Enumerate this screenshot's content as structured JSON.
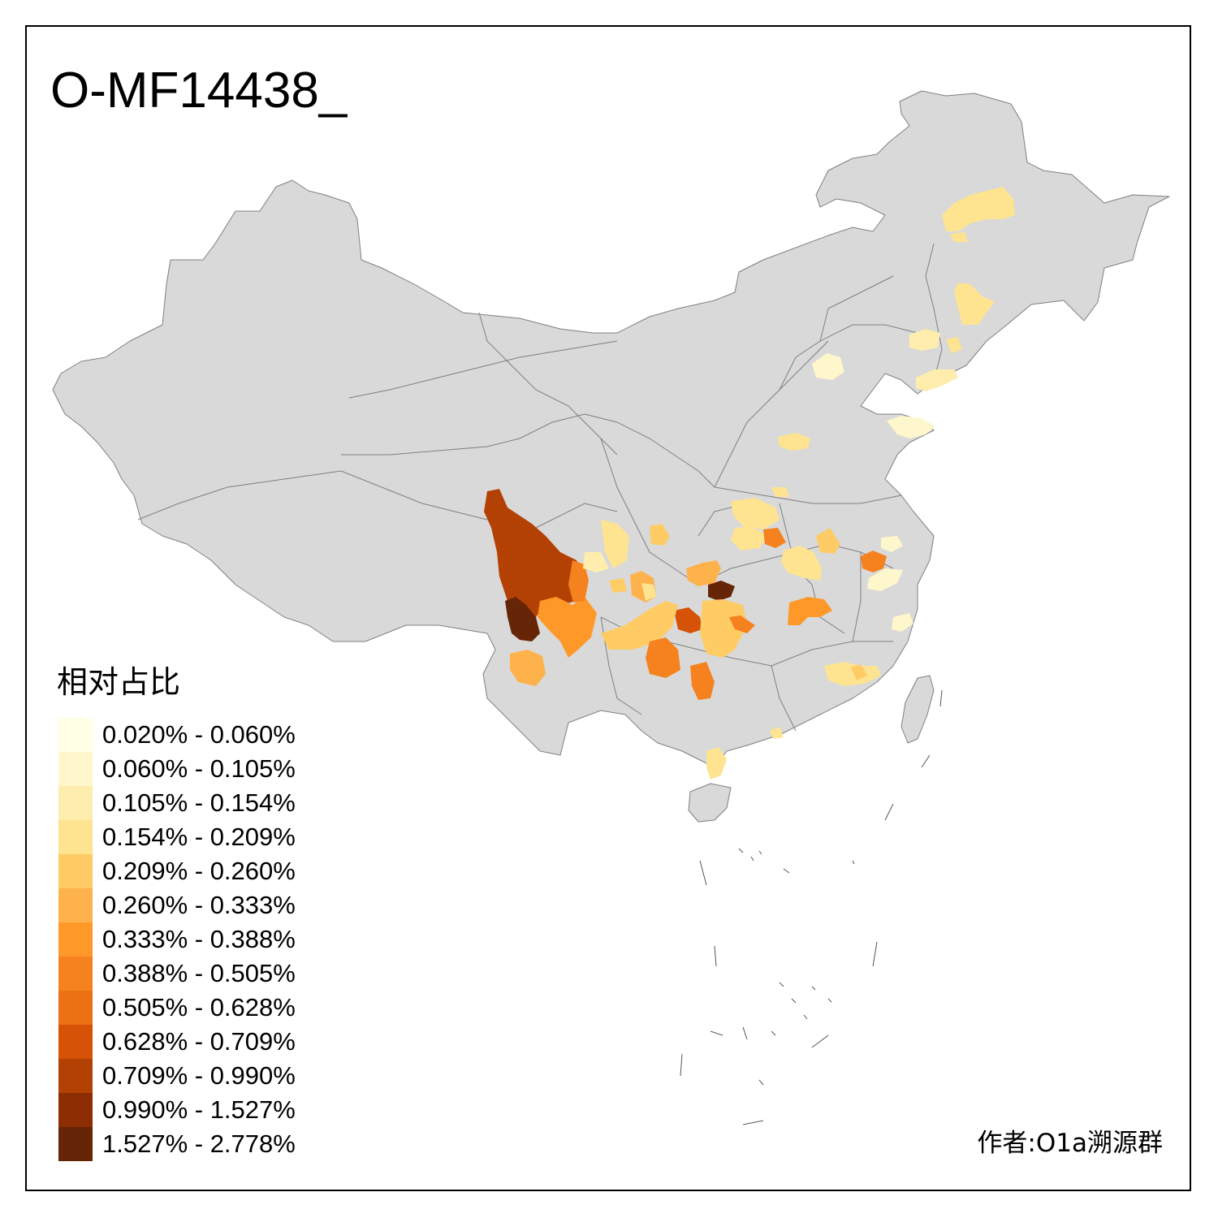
{
  "title": "O-MF14438_",
  "legend": {
    "title": "相对占比",
    "items": [
      {
        "label": "0.020% - 0.060%",
        "color": "#FFFFE5"
      },
      {
        "label": "0.060% - 0.105%",
        "color": "#FFF7CC"
      },
      {
        "label": "0.105% - 0.154%",
        "color": "#FFEDAE"
      },
      {
        "label": "0.154% - 0.209%",
        "color": "#FEE391"
      },
      {
        "label": "0.209% - 0.260%",
        "color": "#FECB65"
      },
      {
        "label": "0.260% - 0.333%",
        "color": "#FEB24C"
      },
      {
        "label": "0.333% - 0.388%",
        "color": "#FE9929"
      },
      {
        "label": "0.388% - 0.505%",
        "color": "#F5821E"
      },
      {
        "label": "0.505% - 0.628%",
        "color": "#EC7014"
      },
      {
        "label": "0.628% - 0.709%",
        "color": "#D55206"
      },
      {
        "label": "0.709% - 0.990%",
        "color": "#B44104"
      },
      {
        "label": "0.990% - 1.527%",
        "color": "#8C2D04"
      },
      {
        "label": "1.527% - 2.778%",
        "color": "#662506"
      }
    ]
  },
  "credit": "作者:O1a溯源群",
  "colors": {
    "land": "#D9D9D9",
    "border": "#7F7F7F",
    "frame": "#000000"
  }
}
